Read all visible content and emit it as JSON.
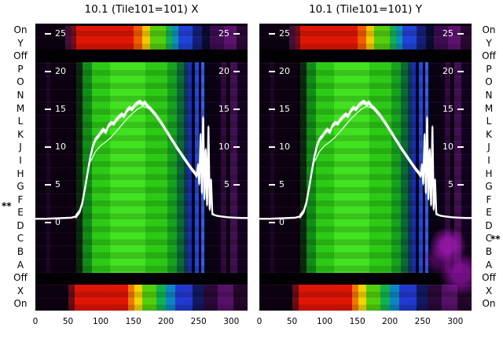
{
  "titles": {
    "left": "10.1 (Tile101=101) X",
    "right": "10.1 (Tile101=101) Y"
  },
  "row_labels": [
    "On",
    "Y",
    "Off",
    "P",
    "O",
    "N",
    "M",
    "L",
    "K",
    "J",
    "I",
    "H",
    "G",
    "F",
    "E",
    "D",
    "C",
    "B",
    "A",
    "Off",
    "X",
    "On"
  ],
  "markers": {
    "left_star": "**",
    "right_star": "**"
  },
  "y_axis": {
    "left_values": [
      25,
      20,
      15,
      10,
      5,
      0
    ],
    "right_values": [
      25,
      20,
      15,
      10,
      5
    ]
  },
  "x_axis": {
    "values": [
      0,
      50,
      100,
      150,
      200,
      250,
      300
    ]
  },
  "colors": {
    "background": "#ffffff",
    "axis_text": "#000000",
    "in_plot_text": "#ffffff",
    "curve": "#ffffff",
    "heat_background": "#0c0010",
    "heat_green": "#2cc915",
    "heat_green_bright": "#41e21f",
    "heat_red": "#e01605",
    "heat_yellow": "#f5c800",
    "heat_blue": "#2747d2",
    "heat_purple": "#420f52",
    "off_band": "#020004"
  },
  "chart_data": {
    "type": "heatmap",
    "panels": [
      {
        "title": "10.1 (Tile101=101) X"
      },
      {
        "title": "10.1 (Tile101=101) Y"
      }
    ],
    "x_range": [
      0,
      325
    ],
    "x_ticks": [
      0,
      50,
      100,
      150,
      200,
      250,
      300
    ],
    "overlay_y_range": [
      0,
      25
    ],
    "overlay_y_ticks": [
      0,
      5,
      10,
      15,
      20,
      25
    ],
    "row_labels": [
      "On",
      "Y",
      "Off",
      "P",
      "O",
      "N",
      "M",
      "L",
      "K",
      "J",
      "I",
      "H",
      "G",
      "F",
      "E",
      "D",
      "C",
      "B",
      "A",
      "Off",
      "X",
      "On"
    ],
    "heat_regions": {
      "rainbow_band_rows": [
        "On",
        "Y",
        "X",
        "On"
      ],
      "black_off_rows": [
        "Off",
        "Off"
      ],
      "green_band_x": [
        87,
        222
      ],
      "blue_stripes_x": [
        234,
        262
      ],
      "purple_stripes_x": [
        284,
        310
      ]
    },
    "overlay_series": [
      {
        "name": "signal-mean",
        "points": [
          [
            0,
            0.5
          ],
          [
            15,
            0.5
          ],
          [
            30,
            0.55
          ],
          [
            45,
            0.6
          ],
          [
            55,
            0.65
          ],
          [
            62,
            0.8
          ],
          [
            68,
            1.5
          ],
          [
            72,
            2.6
          ],
          [
            76,
            4.5
          ],
          [
            80,
            6.6
          ],
          [
            84,
            8.6
          ],
          [
            88,
            10.1
          ],
          [
            92,
            11.0
          ],
          [
            96,
            11.4
          ],
          [
            100,
            11.9
          ],
          [
            104,
            12.3
          ],
          [
            108,
            12.0
          ],
          [
            112,
            12.8
          ],
          [
            116,
            13.2
          ],
          [
            120,
            13.1
          ],
          [
            124,
            13.6
          ],
          [
            128,
            14.0
          ],
          [
            132,
            14.3
          ],
          [
            136,
            14.1
          ],
          [
            140,
            14.8
          ],
          [
            144,
            15.2
          ],
          [
            148,
            15.0
          ],
          [
            152,
            15.5
          ],
          [
            156,
            15.8
          ],
          [
            160,
            16.0
          ],
          [
            164,
            15.7
          ],
          [
            168,
            15.9
          ],
          [
            172,
            15.4
          ],
          [
            176,
            15.1
          ],
          [
            180,
            14.7
          ],
          [
            184,
            14.3
          ],
          [
            188,
            13.8
          ],
          [
            192,
            13.3
          ],
          [
            196,
            12.8
          ],
          [
            200,
            12.2
          ],
          [
            204,
            11.7
          ],
          [
            208,
            11.1
          ],
          [
            212,
            10.6
          ],
          [
            216,
            10.0
          ],
          [
            220,
            9.5
          ],
          [
            224,
            9.0
          ],
          [
            228,
            8.5
          ],
          [
            232,
            8.0
          ],
          [
            236,
            7.5
          ],
          [
            240,
            7.0
          ],
          [
            244,
            6.6
          ],
          [
            247,
            6.2
          ],
          [
            249,
            7.6
          ],
          [
            251,
            5.2
          ],
          [
            253,
            11.6
          ],
          [
            255,
            4.0
          ],
          [
            257,
            13.8
          ],
          [
            259,
            3.2
          ],
          [
            261,
            9.6
          ],
          [
            263,
            2.4
          ],
          [
            265,
            12.6
          ],
          [
            267,
            1.8
          ],
          [
            269,
            5.6
          ],
          [
            271,
            1.2
          ],
          [
            274,
            1.0
          ],
          [
            278,
            0.9
          ],
          [
            285,
            0.8
          ],
          [
            295,
            0.7
          ],
          [
            305,
            0.65
          ],
          [
            315,
            0.6
          ],
          [
            325,
            0.6
          ]
        ]
      },
      {
        "name": "signal-low-branch",
        "points": [
          [
            84,
            8.0
          ],
          [
            92,
            9.4
          ],
          [
            100,
            10.2
          ],
          [
            108,
            10.7
          ],
          [
            116,
            11.3
          ],
          [
            124,
            12.1
          ],
          [
            132,
            12.9
          ],
          [
            140,
            13.7
          ],
          [
            148,
            14.4
          ],
          [
            156,
            15.0
          ],
          [
            164,
            15.4
          ],
          [
            172,
            15.2
          ]
        ]
      }
    ]
  }
}
